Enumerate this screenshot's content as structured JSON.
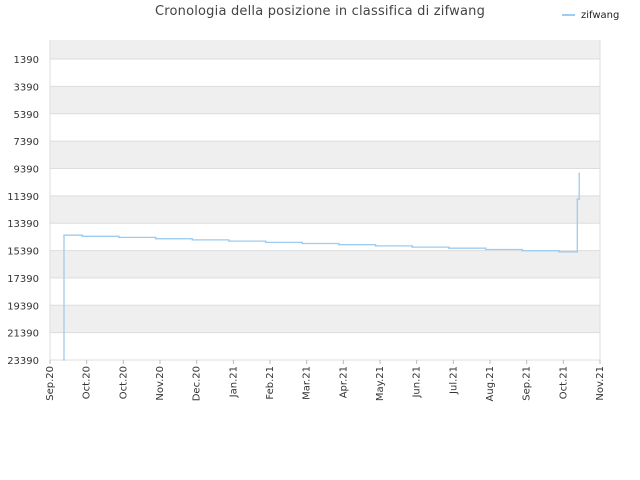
{
  "chart_data": {
    "type": "line",
    "title": "Cronologia della posizione in classifica di zifwang",
    "y_reversed": true,
    "ylim": [
      1390,
      23390
    ],
    "y_ticks": [
      "1390",
      "3390",
      "5390",
      "7390",
      "9390",
      "11390",
      "13390",
      "15390",
      "17390",
      "19390",
      "21390",
      "23390"
    ],
    "x_ticks": [
      "Sep.20",
      "Oct.20",
      "Oct.20",
      "Nov.20",
      "Dec.20",
      "Jan.21",
      "Feb.21",
      "Mar.21",
      "Apr.21",
      "May.21",
      "Jun.21",
      "Jul.21",
      "Aug.21",
      "Sep.21",
      "Oct.21",
      "Nov.21"
    ],
    "legend_position": "top-right",
    "grid": true,
    "series": [
      {
        "name": "zifwang",
        "color": "#9ecbf0",
        "step_points": [
          [
            0.0,
            23390
          ],
          [
            0.0,
            14270
          ],
          [
            0.5,
            14350
          ],
          [
            1.5,
            14430
          ],
          [
            2.5,
            14520
          ],
          [
            3.5,
            14610
          ],
          [
            4.5,
            14700
          ],
          [
            5.5,
            14790
          ],
          [
            6.5,
            14870
          ],
          [
            7.5,
            14960
          ],
          [
            8.5,
            15050
          ],
          [
            9.5,
            15140
          ],
          [
            10.5,
            15220
          ],
          [
            11.5,
            15310
          ],
          [
            12.5,
            15400
          ],
          [
            13.5,
            15480
          ],
          [
            14.0,
            15480
          ],
          [
            14.0,
            11630
          ],
          [
            14.05,
            11630
          ],
          [
            14.05,
            9740
          ]
        ]
      }
    ]
  }
}
